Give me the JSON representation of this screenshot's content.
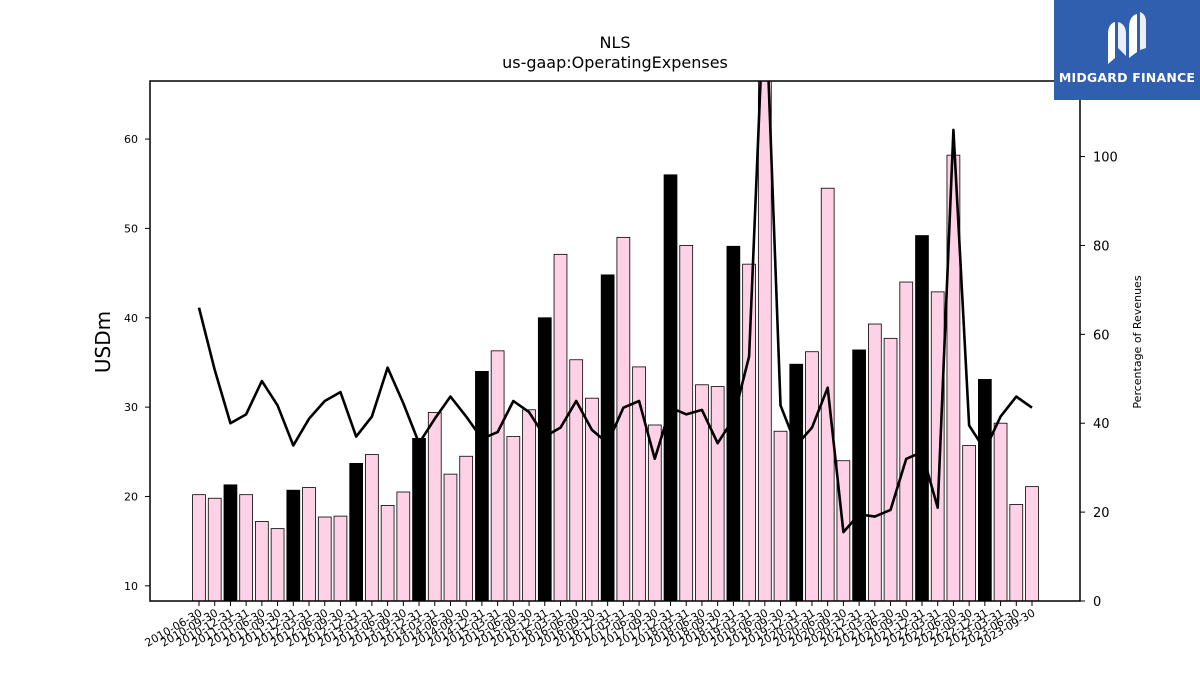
{
  "brand": {
    "name": "MIDGARD FINANCE",
    "bg_color": "#2f5fae"
  },
  "chart_data": {
    "type": "bar+line",
    "title": "NLS",
    "subtitle": "us-gaap:OperatingExpenses",
    "ylabel": "USDm",
    "y2label": "Percentage of Revenues",
    "ylim": [
      8.3,
      66.5
    ],
    "y2lim": [
      0,
      117
    ],
    "yticks": [
      10,
      20,
      30,
      40,
      50,
      60
    ],
    "y2ticks": [
      0,
      20,
      40,
      60,
      80,
      100
    ],
    "bar_color": "#ffd1e6",
    "q4_bar_color": "#000000",
    "line_color": "#000000",
    "categories": [
      "2010-06-30",
      "2010-09-30",
      "2010-12-31",
      "2011-03-31",
      "2011-06-30",
      "2011-09-30",
      "2011-12-31",
      "2012-03-31",
      "2012-06-30",
      "2012-09-30",
      "2012-12-31",
      "2013-03-31",
      "2013-06-30",
      "2013-09-30",
      "2013-12-31",
      "2014-03-31",
      "2014-06-30",
      "2014-09-30",
      "2014-12-31",
      "2015-03-31",
      "2015-06-30",
      "2015-09-30",
      "2015-12-31",
      "2016-03-31",
      "2016-06-30",
      "2016-09-30",
      "2016-12-31",
      "2017-03-31",
      "2017-06-30",
      "2017-09-30",
      "2017-12-31",
      "2018-03-31",
      "2018-06-30",
      "2018-09-30",
      "2018-12-31",
      "2019-03-31",
      "2019-06-30",
      "2019-09-30",
      "2019-12-31",
      "2020-03-31",
      "2020-06-30",
      "2020-09-30",
      "2020-12-31",
      "2021-03-31",
      "2021-06-30",
      "2021-09-30",
      "2021-12-31",
      "2022-03-31",
      "2022-06-30",
      "2022-09-30",
      "2022-12-31",
      "2023-03-31",
      "2023-06-30",
      "2023-09-30"
    ],
    "tick_labels": [
      "2010-06-30",
      "2010-09-30",
      "2010-12-31",
      "2011-03-31",
      "2011-06-30",
      "2011-09-30",
      "2011-12-31",
      "2012-03-31",
      "2012-06-30",
      "2012-09-30",
      "2012-12-31",
      "2013-03-31",
      "2013-06-30",
      "2013-09-30",
      "2013-12-31",
      "2014-03-31",
      "2014-06-30",
      "2014-09-30",
      "2014-12-31",
      "2015-03-31",
      "2015-06-30",
      "2015-09-30",
      "2015-12-31",
      "2016-03-31",
      "2016-06-30",
      "2016-09-30",
      "2016-12-31",
      "2017-03-31",
      "2017-06-30",
      "2017-09-30",
      "2017-12-31",
      "2018-03-31",
      "2018-06-30",
      "2018-09-30",
      "2018-12-31",
      "2019-03-31",
      "2019-06-30",
      "2019-09-30",
      "2019-12-31",
      "2020-03-31",
      "2020-06-30",
      "2020-09-30",
      "2020-12-31",
      "2021-03-31",
      "2021-06-30",
      "2021-09-30",
      "2021-12-31",
      "2022-03-31",
      "2022-06-30",
      "2022-09-30",
      "2022-12-31",
      "2023-03-31",
      "2023-06-30",
      "2023-09-30"
    ],
    "series": [
      {
        "name": "Operating Expenses",
        "axis": "left",
        "values": [
          20.2,
          19.8,
          21.3,
          20.2,
          17.2,
          16.4,
          20.7,
          21.0,
          17.7,
          17.8,
          23.7,
          24.7,
          19.0,
          20.5,
          26.5,
          29.4,
          22.5,
          24.5,
          34.0,
          36.3,
          26.7,
          29.7,
          40.0,
          47.1,
          35.3,
          31.0,
          44.8,
          49.0,
          34.5,
          28.0,
          56.0,
          48.1,
          32.5,
          32.3,
          48.0,
          46.0,
          67.5,
          27.3,
          34.8,
          36.2,
          54.5,
          24.0,
          36.4,
          39.3,
          37.7,
          44.0,
          49.2,
          42.9,
          58.2,
          25.7,
          33.1,
          28.2,
          19.1,
          21.1
        ],
        "q4_highlight": [
          false,
          false,
          true,
          false,
          false,
          false,
          true,
          false,
          false,
          false,
          true,
          false,
          false,
          false,
          true,
          false,
          false,
          false,
          true,
          false,
          false,
          false,
          true,
          false,
          false,
          false,
          true,
          false,
          false,
          false,
          true,
          false,
          false,
          false,
          true,
          false,
          false,
          false,
          true,
          false,
          false,
          false,
          true,
          false,
          false,
          false,
          true,
          false,
          false,
          false,
          true,
          false,
          false,
          false
        ]
      },
      {
        "name": "Percentage of Revenues",
        "axis": "right",
        "values": [
          66,
          52,
          40,
          42,
          49.5,
          44,
          35,
          41,
          45,
          47,
          37,
          41.5,
          52.5,
          44.5,
          35.5,
          41,
          46,
          41.5,
          36.5,
          38,
          45,
          42.5,
          37,
          39,
          45,
          38.5,
          35.5,
          43.5,
          45,
          32,
          43.5,
          42,
          43,
          35.5,
          41,
          55,
          140,
          44,
          35,
          39,
          48,
          15.5,
          19.5,
          19,
          20.5,
          32,
          33.5,
          21,
          106,
          39.5,
          34,
          41.5,
          46,
          43.5
        ]
      }
    ]
  }
}
